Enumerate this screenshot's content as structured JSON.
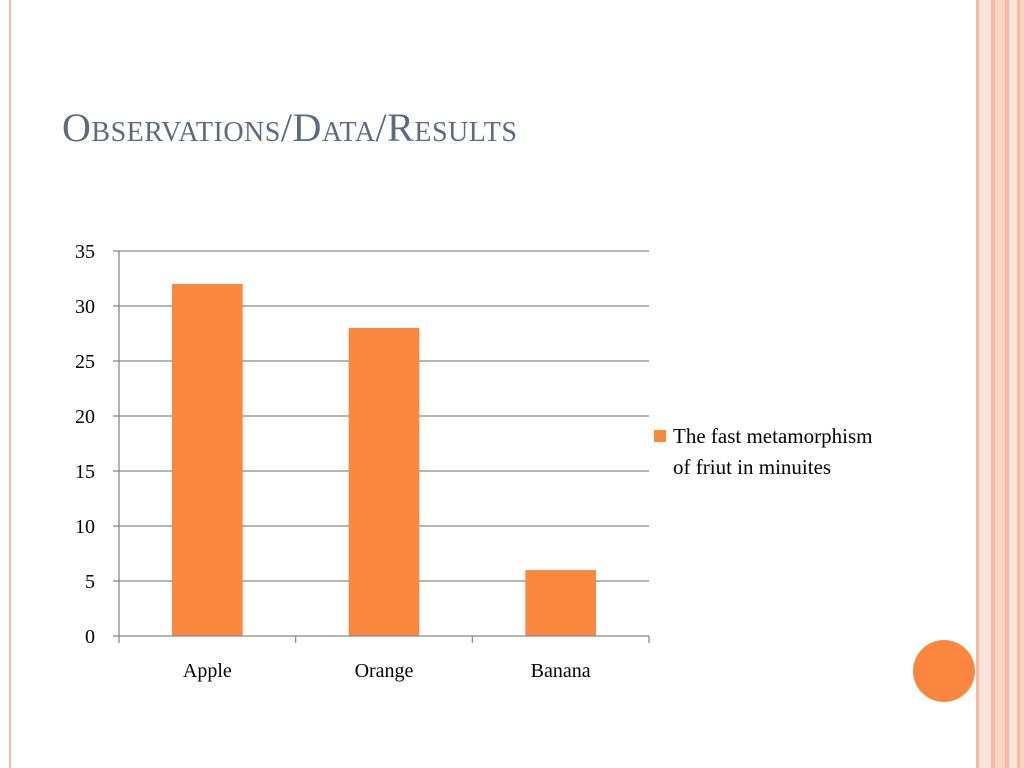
{
  "slide": {
    "title": "Observations/Data/Results"
  },
  "colors": {
    "accent": "#fb883f",
    "title": "#5b6b81",
    "stripe_light": "#fbd4c4",
    "stripe_dark": "#f6b9a6",
    "gridline": "#888888"
  },
  "chart_data": {
    "type": "bar",
    "categories": [
      "Apple",
      "Orange",
      "Banana"
    ],
    "series": [
      {
        "name": "The fast metamorphism of friut in minuites",
        "values": [
          32,
          28,
          6
        ]
      }
    ],
    "ylim": [
      0,
      35
    ],
    "yticks": [
      "0",
      "5",
      "10",
      "15",
      "20",
      "25",
      "30",
      "35"
    ],
    "grid": true,
    "legend_position": "right",
    "xlabel": "",
    "ylabel": ""
  }
}
